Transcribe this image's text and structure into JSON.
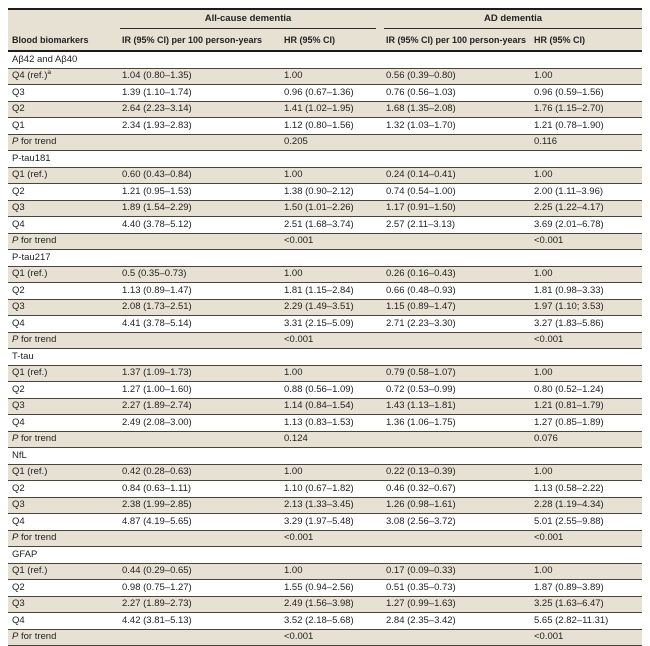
{
  "table": {
    "group_headers": {
      "all_cause": "All-cause dementia",
      "ad": "AD dementia"
    },
    "column_headers": {
      "biomarker": "Blood biomarkers",
      "allcause_ir": "IR (95% CI) per 100 person-years",
      "allcause_hr": "HR (95% CI)",
      "ad_ir": "IR (95% CI) per 100 person-years",
      "ad_hr": "HR (95% CI)"
    },
    "colors": {
      "row_shade": "#e6e1d3",
      "rule": "#4a453c",
      "heavy_rule": "#1c1c1c",
      "text": "#222222"
    },
    "sections": [
      {
        "name": "Aβ42 and Aβ40",
        "rows": [
          {
            "label": "Q4 (ref.)",
            "sup": "a",
            "allcause_ir": "1.04 (0.80–1.35)",
            "allcause_hr": "1.00",
            "ad_ir": "0.56 (0.39–0.80)",
            "ad_hr": "1.00"
          },
          {
            "label": "Q3",
            "allcause_ir": "1.39 (1.10–1.74)",
            "allcause_hr": "0.96 (0.67–1.36)",
            "ad_ir": "0.76 (0.56–1.03)",
            "ad_hr": "0.96 (0.59–1.56)"
          },
          {
            "label": "Q2",
            "allcause_ir": "2.64 (2.23–3.14)",
            "allcause_hr": "1.41 (1.02–1.95)",
            "ad_ir": "1.68 (1.35–2.08)",
            "ad_hr": "1.76 (1.15–2.70)"
          },
          {
            "label": "Q1",
            "allcause_ir": "2.34 (1.93–2.83)",
            "allcause_hr": "1.12 (0.80–1.56)",
            "ad_ir": "1.32 (1.03–1.70)",
            "ad_hr": "1.21 (0.78–1.90)"
          },
          {
            "label": "P for trend",
            "ptrend": true,
            "allcause_ir": "",
            "allcause_hr": "0.205",
            "ad_ir": "",
            "ad_hr": "0.116"
          }
        ]
      },
      {
        "name": "P-tau181",
        "rows": [
          {
            "label": "Q1 (ref.)",
            "allcause_ir": "0.60 (0.43–0.84)",
            "allcause_hr": "1.00",
            "ad_ir": "0.24 (0.14–0.41)",
            "ad_hr": "1.00"
          },
          {
            "label": "Q2",
            "allcause_ir": "1.21 (0.95–1.53)",
            "allcause_hr": "1.38 (0.90–2.12)",
            "ad_ir": "0.74 (0.54–1.00)",
            "ad_hr": "2.00 (1.11–3.96)"
          },
          {
            "label": "Q3",
            "allcause_ir": "1.89 (1.54–2.29)",
            "allcause_hr": "1.50 (1.01–2.26)",
            "ad_ir": "1.17 (0.91–1.50)",
            "ad_hr": "2.25 (1.22–4.17)"
          },
          {
            "label": "Q4",
            "allcause_ir": "4.40 (3.78–5.12)",
            "allcause_hr": "2.51 (1.68–3.74)",
            "ad_ir": "2.57 (2.11–3.13)",
            "ad_hr": "3.69 (2.01–6.78)"
          },
          {
            "label": "P for trend",
            "ptrend": true,
            "allcause_ir": "",
            "allcause_hr": "<0.001",
            "ad_ir": "",
            "ad_hr": "<0.001"
          }
        ]
      },
      {
        "name": "P-tau217",
        "rows": [
          {
            "label": "Q1 (ref.)",
            "allcause_ir": "0.5 (0.35–0.73)",
            "allcause_hr": "1.00",
            "ad_ir": "0.26 (0.16–0.43)",
            "ad_hr": "1.00"
          },
          {
            "label": "Q2",
            "allcause_ir": "1.13 (0.89–1.47)",
            "allcause_hr": "1.81 (1.15–2.84)",
            "ad_ir": "0.66 (0.48–0.93)",
            "ad_hr": "1.81 (0.98–3.33)"
          },
          {
            "label": "Q3",
            "allcause_ir": "2.08 (1.73–2.51)",
            "allcause_hr": "2.29 (1.49–3.51)",
            "ad_ir": "1.15 (0.89–1.47)",
            "ad_hr": "1.97 (1.10; 3.53)"
          },
          {
            "label": "Q4",
            "allcause_ir": "4.41 (3.78–5.14)",
            "allcause_hr": "3.31 (2.15–5.09)",
            "ad_ir": "2.71 (2.23–3.30)",
            "ad_hr": "3.27 (1.83–5.86)"
          },
          {
            "label": "P for trend",
            "ptrend": true,
            "allcause_ir": "",
            "allcause_hr": "<0.001",
            "ad_ir": "",
            "ad_hr": "<0.001"
          }
        ]
      },
      {
        "name": "T-tau",
        "rows": [
          {
            "label": "Q1 (ref.)",
            "allcause_ir": "1.37 (1.09–1.73)",
            "allcause_hr": "1.00",
            "ad_ir": "0.79 (0.58–1.07)",
            "ad_hr": "1.00"
          },
          {
            "label": "Q2",
            "allcause_ir": "1.27 (1.00–1.60)",
            "allcause_hr": "0.88 (0.56–1.09)",
            "ad_ir": "0.72 (0.53–0.99)",
            "ad_hr": "0.80 (0.52–1.24)"
          },
          {
            "label": "Q3",
            "allcause_ir": "2.27 (1.89–2.74)",
            "allcause_hr": "1.14 (0.84–1.54)",
            "ad_ir": "1.43 (1.13–1.81)",
            "ad_hr": "1.21 (0.81–1.79)"
          },
          {
            "label": "Q4",
            "allcause_ir": "2.49 (2.08–3.00)",
            "allcause_hr": "1.13 (0.83–1.53)",
            "ad_ir": "1.36 (1.06–1.75)",
            "ad_hr": "1.27 (0.85–1.89)"
          },
          {
            "label": "P for trend",
            "ptrend": true,
            "allcause_ir": "",
            "allcause_hr": "0.124",
            "ad_ir": "",
            "ad_hr": "0.076"
          }
        ]
      },
      {
        "name": "NfL",
        "rows": [
          {
            "label": "Q1 (ref.)",
            "allcause_ir": "0.42 (0.28–0.63)",
            "allcause_hr": "1.00",
            "ad_ir": "0.22 (0.13–0.39)",
            "ad_hr": "1.00"
          },
          {
            "label": "Q2",
            "allcause_ir": "0.84 (0.63–1.11)",
            "allcause_hr": "1.10 (0.67–1.82)",
            "ad_ir": "0.46 (0.32–0.67)",
            "ad_hr": "1.13 (0.58–2.22)"
          },
          {
            "label": "Q3",
            "allcause_ir": "2.38 (1.99–2.85)",
            "allcause_hr": "2.13 (1.33–3.45)",
            "ad_ir": "1.26 (0.98–1.61)",
            "ad_hr": "2.28 (1.19–4.34)"
          },
          {
            "label": "Q4",
            "allcause_ir": "4.87 (4.19–5.65)",
            "allcause_hr": "3.29 (1.97–5.48)",
            "ad_ir": "3.08 (2.56–3.72)",
            "ad_hr": "5.01 (2.55–9.88)"
          },
          {
            "label": "P for trend",
            "ptrend": true,
            "allcause_ir": "",
            "allcause_hr": "<0.001",
            "ad_ir": "",
            "ad_hr": "<0.001"
          }
        ]
      },
      {
        "name": "GFAP",
        "rows": [
          {
            "label": "Q1 (ref.)",
            "allcause_ir": "0.44 (0.29–0.65)",
            "allcause_hr": "1.00",
            "ad_ir": "0.17 (0.09–0.33)",
            "ad_hr": "1.00"
          },
          {
            "label": "Q2",
            "allcause_ir": "0.98 (0.75–1.27)",
            "allcause_hr": "1.55 (0.94–2.56)",
            "ad_ir": "0.51 (0.35–0.73)",
            "ad_hr": "1.87 (0.89–3.89)"
          },
          {
            "label": "Q3",
            "allcause_ir": "2.27 (1.89–2.73)",
            "allcause_hr": "2.49 (1.56–3.98)",
            "ad_ir": "1.27 (0.99–1.63)",
            "ad_hr": "3.25 (1.63–6.47)"
          },
          {
            "label": "Q4",
            "allcause_ir": "4.42 (3.81–5.13)",
            "allcause_hr": "3.52 (2.18–5.68)",
            "ad_ir": "2.84 (2.35–3.42)",
            "ad_hr": "5.65 (2.82–11.31)"
          },
          {
            "label": "P for trend",
            "ptrend": true,
            "allcause_ir": "",
            "allcause_hr": "<0.001",
            "ad_ir": "",
            "ad_hr": "<0.001"
          }
        ]
      }
    ]
  }
}
